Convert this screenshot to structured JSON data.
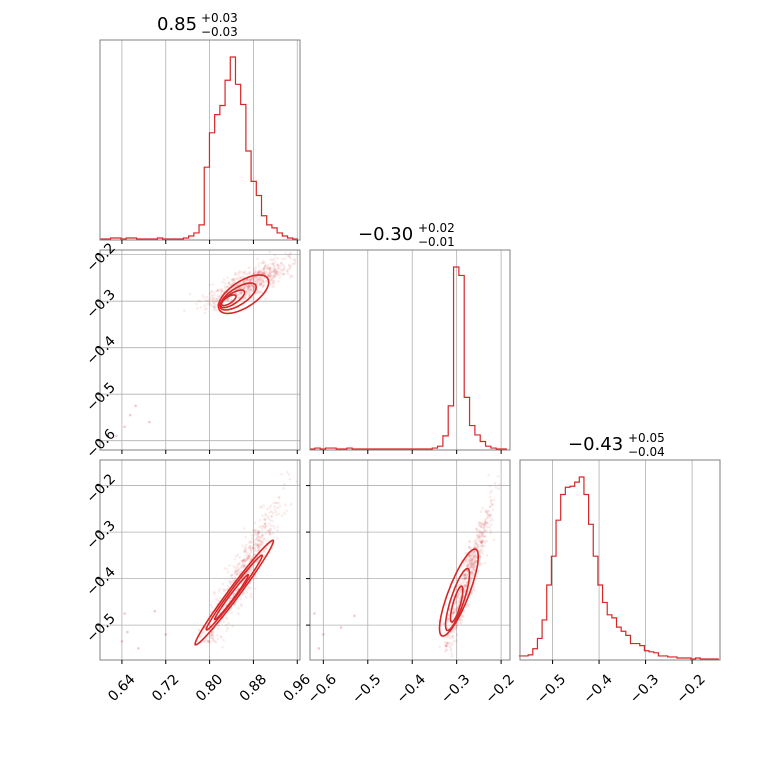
{
  "colors": {
    "series": "#d62728",
    "grid": "#b0b0b0",
    "frame": "#808080"
  },
  "chart_data": [
    {
      "id": "hist-p0",
      "type": "histogram",
      "title": {
        "median": "0.85",
        "plus": "+0.03",
        "minus": "−0.03"
      },
      "xlim": [
        0.6,
        0.965
      ],
      "bins": [
        0.605,
        0.6145,
        0.624,
        0.6335,
        0.643,
        0.6525,
        0.662,
        0.6715,
        0.681,
        0.6905,
        0.7,
        0.7095,
        0.719,
        0.7285,
        0.738,
        0.7475,
        0.757,
        0.7665,
        0.776,
        0.7855,
        0.795,
        0.8045,
        0.814,
        0.8235,
        0.833,
        0.8425,
        0.852,
        0.8615,
        0.871,
        0.8805,
        0.89,
        0.8995,
        0.909,
        0.9185,
        0.928,
        0.9375,
        0.947,
        0.9565
      ],
      "counts": [
        0,
        0,
        1,
        1,
        0,
        1,
        1,
        0,
        0,
        0,
        0,
        1,
        0,
        0,
        0,
        0,
        1,
        3,
        6,
        14,
        71,
        105,
        123,
        132,
        157,
        180,
        153,
        133,
        87,
        57,
        43,
        23,
        14,
        11,
        6,
        3,
        1,
        0
      ],
      "grid_x": [
        0.64,
        0.72,
        0.8,
        0.88,
        0.96
      ],
      "show_x_ticks": false,
      "show_y_ticks": false
    },
    {
      "id": "hist-p1",
      "type": "histogram",
      "title": {
        "median": "−0.30",
        "plus": "+0.02",
        "minus": "−0.01"
      },
      "xlim": [
        -0.63,
        -0.18
      ],
      "bins": [
        -0.625,
        -0.613,
        -0.601,
        -0.589,
        -0.577,
        -0.565,
        -0.553,
        -0.541,
        -0.529,
        -0.517,
        -0.505,
        -0.493,
        -0.481,
        -0.469,
        -0.457,
        -0.445,
        -0.433,
        -0.421,
        -0.409,
        -0.397,
        -0.385,
        -0.373,
        -0.361,
        -0.349,
        -0.337,
        -0.325,
        -0.313,
        -0.301,
        -0.289,
        -0.277,
        -0.265,
        -0.253,
        -0.241,
        -0.229,
        -0.217,
        -0.205,
        -0.193
      ],
      "counts": [
        0,
        1,
        0,
        1,
        1,
        0,
        0,
        1,
        0,
        0,
        0,
        0,
        0,
        0,
        0,
        0,
        0,
        0,
        0,
        0,
        0,
        0,
        0,
        1,
        3,
        14,
        46,
        194,
        185,
        55,
        25,
        15,
        8,
        3,
        1,
        0,
        0
      ],
      "grid_x": [
        -0.6,
        -0.5,
        -0.4,
        -0.3,
        -0.2
      ],
      "show_x_ticks": false,
      "show_y_ticks": false
    },
    {
      "id": "hist-p2",
      "type": "histogram",
      "title": {
        "median": "−0.43",
        "plus": "+0.05",
        "minus": "−0.04"
      },
      "xlim": [
        -0.57,
        -0.14
      ],
      "bins": [
        -0.5675,
        -0.5575,
        -0.5475,
        -0.5375,
        -0.5275,
        -0.5175,
        -0.5075,
        -0.4975,
        -0.4875,
        -0.4775,
        -0.4675,
        -0.4575,
        -0.4475,
        -0.4375,
        -0.4275,
        -0.4175,
        -0.4075,
        -0.3975,
        -0.3875,
        -0.3775,
        -0.3675,
        -0.3575,
        -0.3475,
        -0.3375,
        -0.3275,
        -0.3175,
        -0.3075,
        -0.2975,
        -0.2875,
        -0.2775,
        -0.2675,
        -0.2575,
        -0.2475,
        -0.2375,
        -0.2275,
        -0.2175,
        -0.2075,
        -0.1975,
        -0.1875,
        -0.1775,
        -0.1675,
        -0.1575,
        -0.1475
      ],
      "counts": [
        3,
        3,
        4,
        10,
        20,
        38,
        72,
        100,
        135,
        160,
        167,
        168,
        172,
        177,
        160,
        131,
        100,
        72,
        55,
        43,
        40,
        31,
        27,
        23,
        15,
        15,
        13,
        8,
        7,
        6,
        3,
        3,
        2,
        2,
        1,
        1,
        1,
        0,
        1,
        0,
        0,
        0,
        0
      ],
      "grid_x": [
        -0.5,
        -0.4,
        -0.3,
        -0.2
      ],
      "x_ticks": [
        -0.5,
        -0.4,
        -0.3,
        -0.2
      ],
      "x_tick_labels": [
        "−0.5",
        "−0.4",
        "−0.3",
        "−0.2"
      ],
      "show_x_ticks": true,
      "show_y_ticks": false
    },
    {
      "id": "scatter-p0-p1",
      "type": "scatter",
      "xlim": [
        0.6,
        0.965
      ],
      "ylim": [
        -0.62,
        -0.19
      ],
      "y_ticks": [
        -0.2,
        -0.3,
        -0.4,
        -0.5,
        -0.6
      ],
      "y_tick_labels": [
        "−0.2",
        "−0.3",
        "−0.4",
        "−0.5",
        "−0.6"
      ],
      "grid_x": [
        0.64,
        0.72,
        0.8,
        0.88,
        0.96
      ],
      "outliers": [
        [
          0.63,
          -0.59
        ],
        [
          0.645,
          -0.57
        ],
        [
          0.655,
          -0.545
        ],
        [
          0.69,
          -0.56
        ],
        [
          0.665,
          -0.525
        ]
      ],
      "corr": {
        "x0": 0.81,
        "x1": 0.955,
        "y0": -0.315,
        "y1": -0.195,
        "sx": 0.022,
        "sy": 0.006
      },
      "contours": [
        {
          "cx": 0.862,
          "cy": -0.285,
          "rx": 0.062,
          "ry": 0.028,
          "angle": 0.58
        },
        {
          "cx": 0.852,
          "cy": -0.29,
          "rx": 0.045,
          "ry": 0.018,
          "angle": 0.58
        },
        {
          "cx": 0.842,
          "cy": -0.295,
          "rx": 0.03,
          "ry": 0.011,
          "angle": 0.58
        },
        {
          "cx": 0.835,
          "cy": -0.298,
          "rx": 0.018,
          "ry": 0.007,
          "angle": 0.58
        }
      ],
      "show_x_ticks": false,
      "show_y_ticks": true
    },
    {
      "id": "scatter-p0-p2",
      "type": "scatter",
      "xlim": [
        0.6,
        0.965
      ],
      "ylim": [
        -0.575,
        -0.145
      ],
      "y_ticks": [
        -0.2,
        -0.3,
        -0.4,
        -0.5
      ],
      "y_tick_labels": [
        "−0.2",
        "−0.3",
        "−0.4",
        "−0.5"
      ],
      "x_ticks": [
        0.64,
        0.72,
        0.8,
        0.88,
        0.96
      ],
      "x_tick_labels": [
        "0.64",
        "0.72",
        "0.80",
        "0.88",
        "0.96"
      ],
      "grid_x": [
        0.64,
        0.72,
        0.8,
        0.88,
        0.96
      ],
      "outliers": [
        [
          0.645,
          -0.475
        ],
        [
          0.65,
          -0.515
        ],
        [
          0.67,
          -0.55
        ],
        [
          0.7,
          -0.47
        ],
        [
          0.64,
          -0.535
        ],
        [
          0.72,
          -0.52
        ]
      ],
      "corr": {
        "x0": 0.8,
        "x1": 0.945,
        "y0": -0.53,
        "y1": -0.19,
        "sx": 0.012,
        "sy": 0.01
      },
      "contours": [
        {
          "cx": 0.845,
          "cy": -0.43,
          "rx": 0.14,
          "ry": 0.012,
          "angle": 0.93
        },
        {
          "cx": 0.845,
          "cy": -0.43,
          "rx": 0.1,
          "ry": 0.008,
          "angle": 0.93
        },
        {
          "cx": 0.84,
          "cy": -0.44,
          "rx": 0.06,
          "ry": 0.005,
          "angle": 0.93
        }
      ],
      "show_x_ticks": true,
      "show_y_ticks": true
    },
    {
      "id": "scatter-p1-p2",
      "type": "scatter",
      "xlim": [
        -0.63,
        -0.18
      ],
      "ylim": [
        -0.575,
        -0.145
      ],
      "x_ticks": [
        -0.6,
        -0.5,
        -0.4,
        -0.3,
        -0.2
      ],
      "x_tick_labels": [
        "−0.6",
        "−0.5",
        "−0.4",
        "−0.3",
        "−0.2"
      ],
      "grid_x": [
        -0.6,
        -0.5,
        -0.4,
        -0.3,
        -0.2
      ],
      "outliers": [
        [
          -0.62,
          -0.475
        ],
        [
          -0.6,
          -0.52
        ],
        [
          -0.56,
          -0.505
        ],
        [
          -0.53,
          -0.48
        ],
        [
          -0.61,
          -0.55
        ]
      ],
      "corr": {
        "x0": -0.325,
        "x1": -0.205,
        "y0": -0.545,
        "y1": -0.19,
        "sx": 0.008,
        "sy": 0.015
      },
      "contours": [
        {
          "cx": -0.295,
          "cy": -0.43,
          "rx": 0.1,
          "ry": 0.022,
          "angle": 1.2
        },
        {
          "cx": -0.298,
          "cy": -0.445,
          "rx": 0.07,
          "ry": 0.014,
          "angle": 1.25
        },
        {
          "cx": -0.3,
          "cy": -0.455,
          "rx": 0.04,
          "ry": 0.008,
          "angle": 1.3
        }
      ],
      "show_x_ticks": true,
      "show_y_ticks": true,
      "y_tick_marks_only": true
    }
  ]
}
